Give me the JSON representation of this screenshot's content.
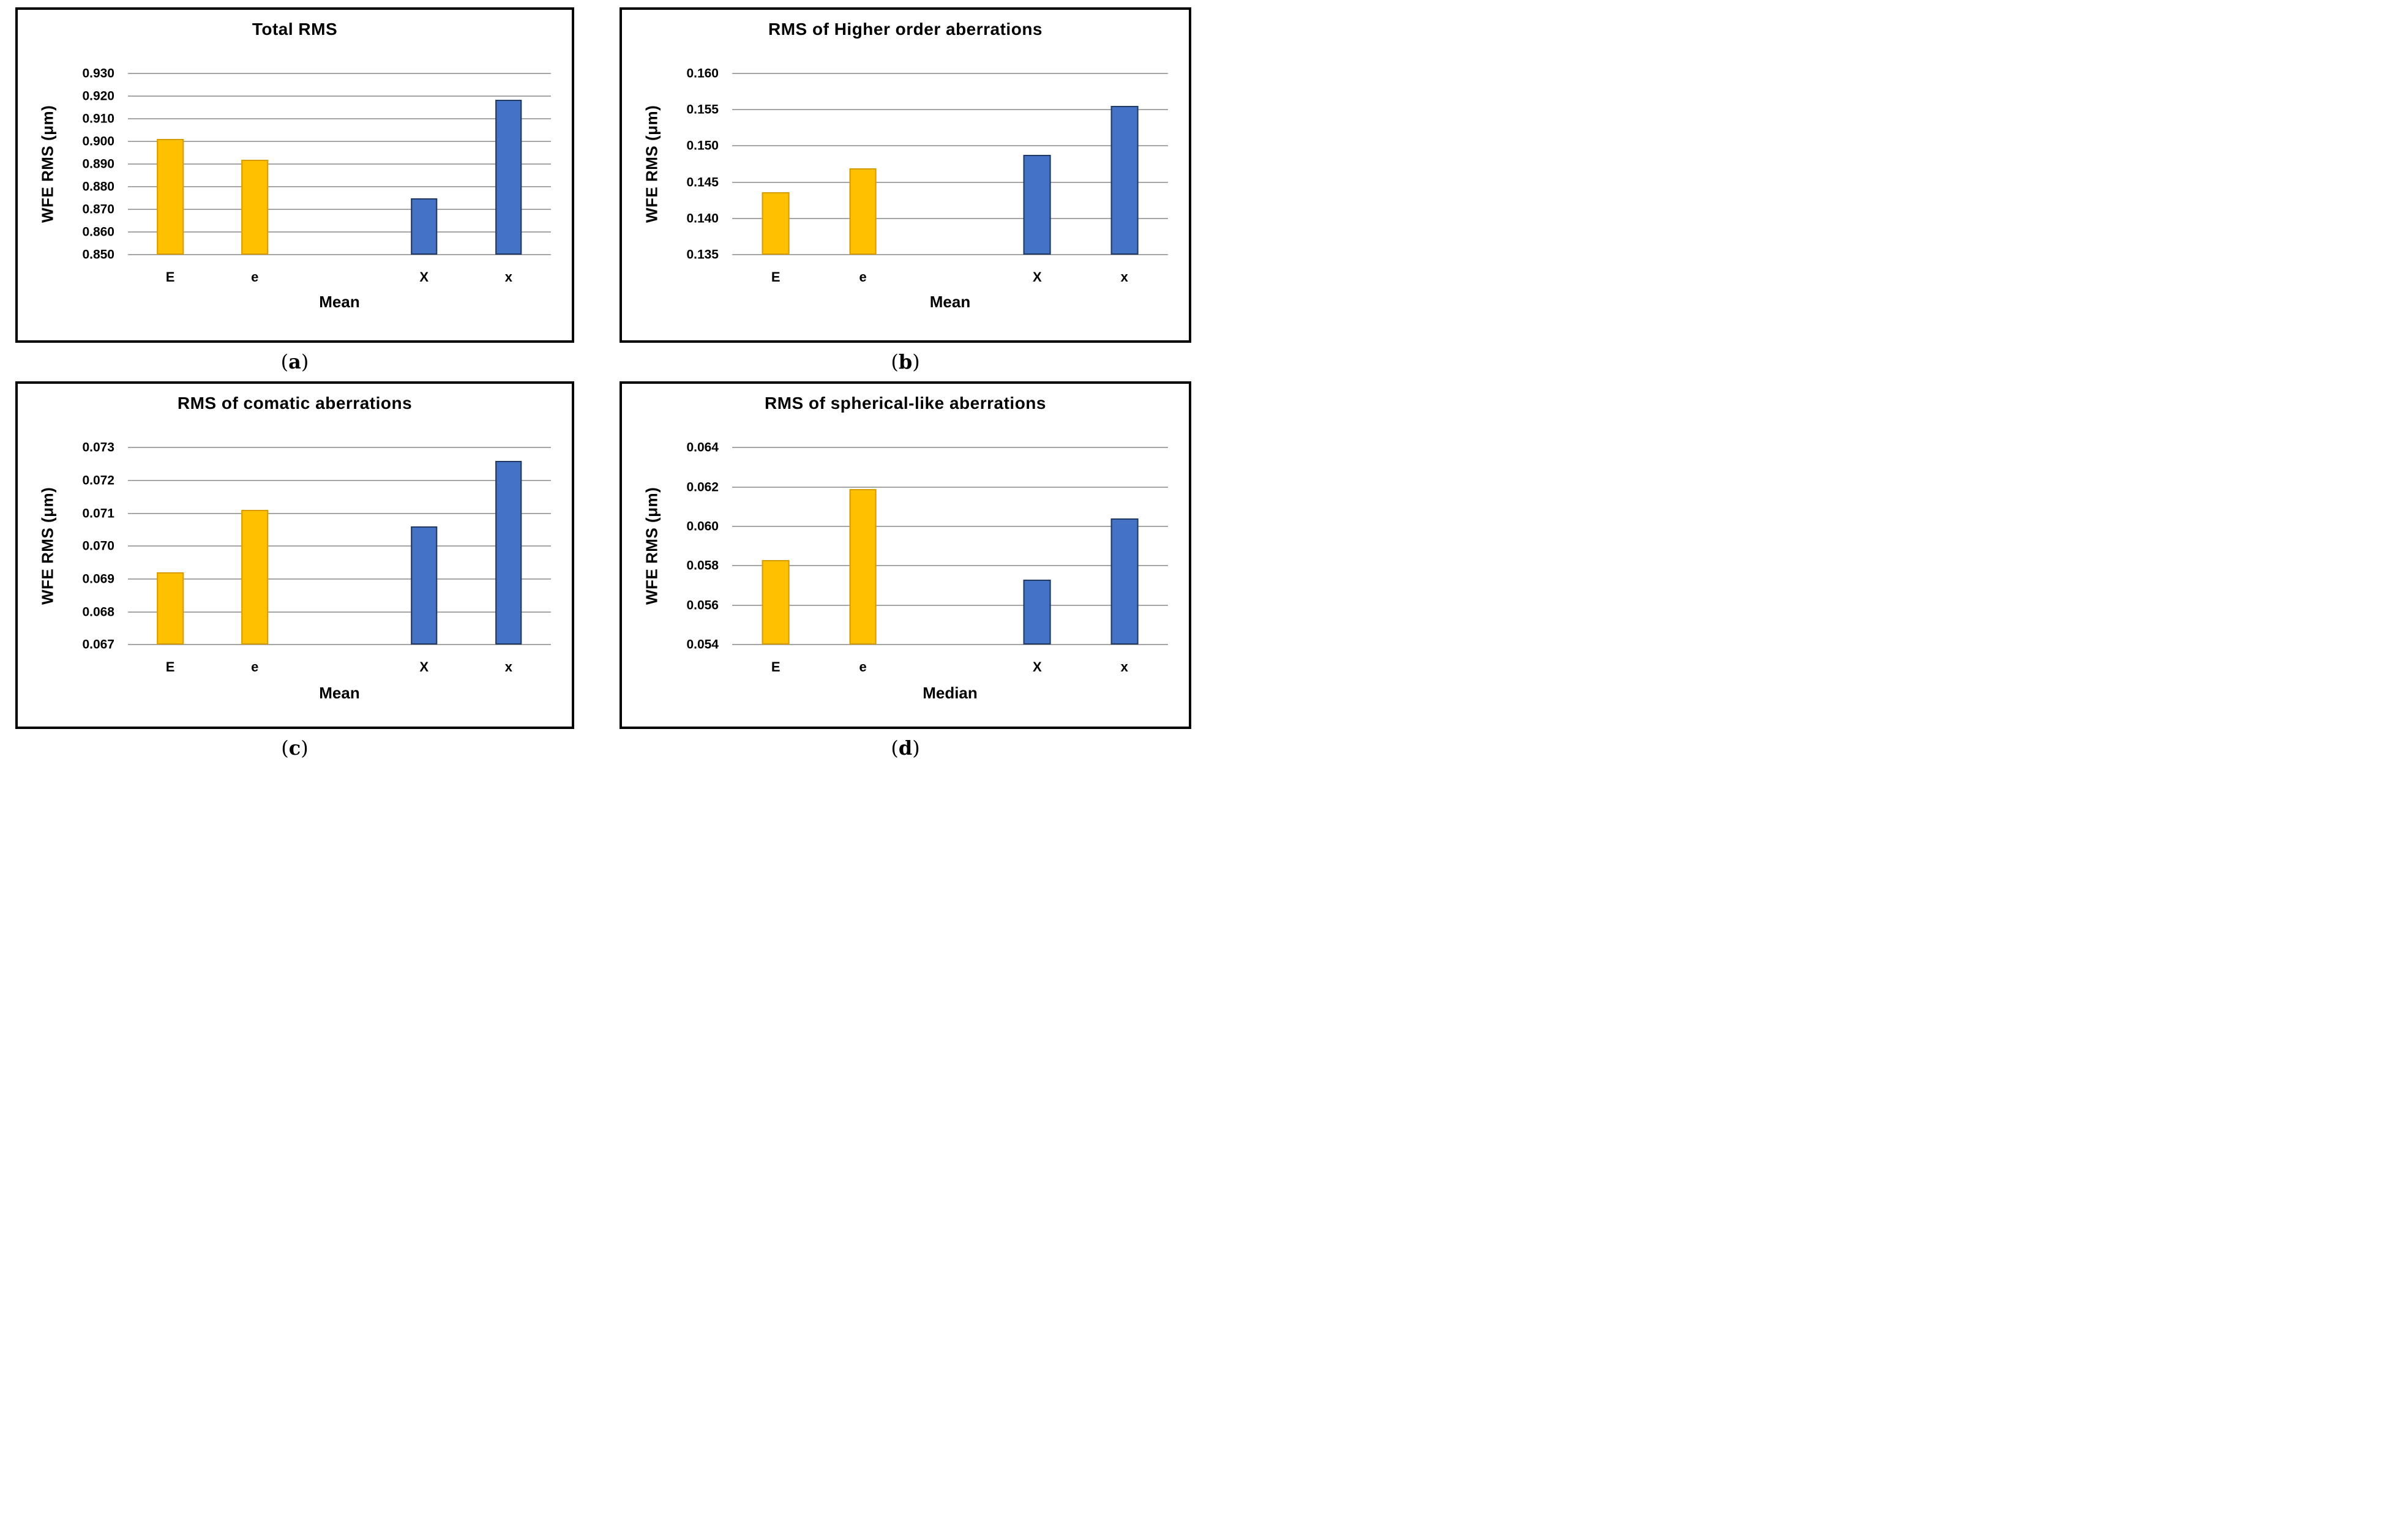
{
  "page": {
    "background": "#ffffff"
  },
  "colors": {
    "gold": "#FFC000",
    "gold_border": "#D89B00",
    "blue": "#4472C4",
    "blue_border": "#1F3864",
    "gridline": "#A6A6A6",
    "panel_border": "#000000",
    "text": "#000000"
  },
  "captions": [
    {
      "open": "(",
      "letter": "a",
      "close": ")"
    },
    {
      "open": "(",
      "letter": "b",
      "close": ")"
    },
    {
      "open": "(",
      "letter": "c",
      "close": ")"
    },
    {
      "open": "(",
      "letter": "d",
      "close": ")"
    }
  ],
  "chart_data": [
    {
      "type": "bar",
      "title": "Total RMS",
      "ylabel": "WFE RMS (μm)",
      "xlabel": "Mean",
      "categories": [
        "E",
        "e",
        "X",
        "x"
      ],
      "values": [
        0.9012,
        0.8919,
        0.875,
        0.9184
      ],
      "bar_colors": [
        "gold",
        "gold",
        "blue",
        "blue"
      ],
      "slots": [
        0,
        1,
        3,
        4
      ],
      "slot_count": 5,
      "ylim": [
        0.85,
        0.93
      ],
      "ytick_step": 0.01,
      "ytick_decimals": 3,
      "grid": true,
      "legend": "none"
    },
    {
      "type": "bar",
      "title": "RMS of Higher order aberrations",
      "ylabel": "WFE RMS (μm)",
      "xlabel": "Mean",
      "categories": [
        "E",
        "e",
        "X",
        "x"
      ],
      "values": [
        0.1436,
        0.1469,
        0.1488,
        0.1555
      ],
      "bar_colors": [
        "gold",
        "gold",
        "blue",
        "blue"
      ],
      "slots": [
        0,
        1,
        3,
        4
      ],
      "slot_count": 5,
      "ylim": [
        0.135,
        0.16
      ],
      "ytick_step": 0.005,
      "ytick_decimals": 3,
      "grid": true,
      "legend": "none"
    },
    {
      "type": "bar",
      "title": "RMS of comatic aberrations",
      "ylabel": "WFE RMS (μm)",
      "xlabel": "Mean",
      "categories": [
        "E",
        "e",
        "X",
        "x"
      ],
      "values": [
        0.0692,
        0.0711,
        0.0706,
        0.0726
      ],
      "bar_colors": [
        "gold",
        "gold",
        "blue",
        "blue"
      ],
      "slots": [
        0,
        1,
        3,
        4
      ],
      "slot_count": 5,
      "ylim": [
        0.067,
        0.073
      ],
      "ytick_step": 0.001,
      "ytick_decimals": 3,
      "grid": true,
      "legend": "none"
    },
    {
      "type": "bar",
      "title": "RMS of spherical-like aberrations",
      "ylabel": "WFE RMS (μm)",
      "xlabel": "Median",
      "categories": [
        "E",
        "e",
        "X",
        "x"
      ],
      "values": [
        0.0583,
        0.0619,
        0.0573,
        0.0604
      ],
      "bar_colors": [
        "gold",
        "gold",
        "blue",
        "blue"
      ],
      "slots": [
        0,
        1,
        3,
        4
      ],
      "slot_count": 5,
      "ylim": [
        0.054,
        0.064
      ],
      "ytick_step": 0.002,
      "ytick_decimals": 3,
      "grid": true,
      "legend": "none"
    }
  ]
}
